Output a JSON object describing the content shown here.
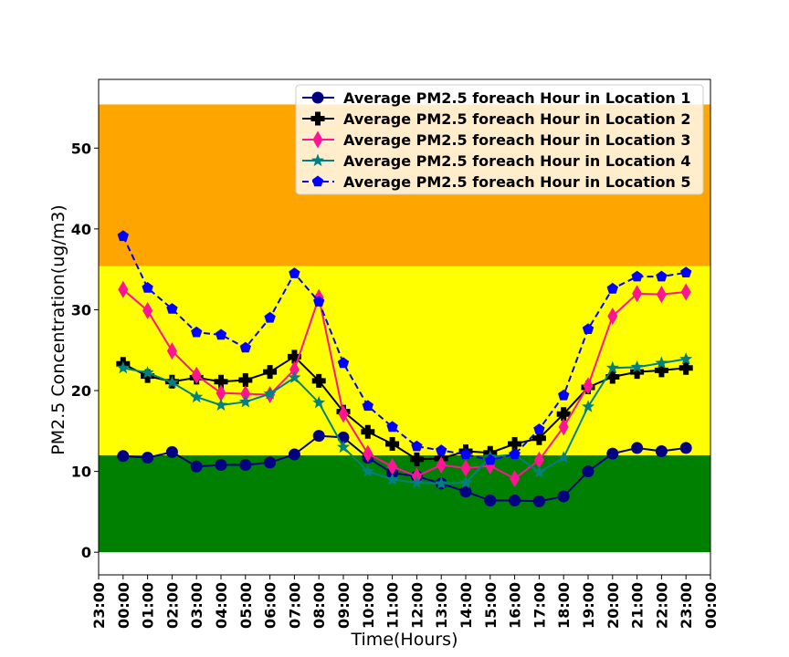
{
  "chart_data": {
    "type": "line",
    "xlabel": "Time(Hours)",
    "ylabel": "PM2.5 Concentration(ug/m3)",
    "x_tick_labels": [
      "23:00",
      "00:00",
      "01:00",
      "02:00",
      "03:00",
      "04:00",
      "05:00",
      "06:00",
      "07:00",
      "08:00",
      "09:00",
      "10:00",
      "11:00",
      "12:00",
      "13:00",
      "14:00",
      "15:00",
      "16:00",
      "17:00",
      "18:00",
      "19:00",
      "20:00",
      "21:00",
      "22:00",
      "23:00",
      "00:00"
    ],
    "x_hours": [
      0,
      1,
      2,
      3,
      4,
      5,
      6,
      7,
      8,
      9,
      10,
      11,
      12,
      13,
      14,
      15,
      16,
      17,
      18,
      19,
      20,
      21,
      22,
      23
    ],
    "xlim": [
      -1,
      24
    ],
    "ylim": [
      -2.8,
      58.5
    ],
    "y_ticks": [
      0,
      10,
      20,
      30,
      40,
      50
    ],
    "bands": [
      {
        "from": 0,
        "to": 12,
        "color": "#008000"
      },
      {
        "from": 12,
        "to": 35.4,
        "color": "#ffff00"
      },
      {
        "from": 35.4,
        "to": 55.4,
        "color": "#ffa500"
      }
    ],
    "legend_position": "top-right",
    "series": [
      {
        "name": "Average PM2.5 foreach Hour in Location 1",
        "color": "#000080",
        "marker": "circle",
        "dashed": false,
        "values": [
          11.9,
          11.7,
          12.4,
          10.6,
          10.8,
          10.8,
          11.1,
          12.1,
          14.4,
          14.2,
          11.7,
          9.8,
          9.4,
          8.5,
          7.5,
          6.4,
          6.4,
          6.3,
          6.9,
          10.0,
          12.2,
          12.9,
          12.5,
          12.9
        ]
      },
      {
        "name": "Average PM2.5 foreach Hour in Location 2",
        "color": "#000000",
        "marker": "plus",
        "dashed": false,
        "values": [
          23.3,
          21.8,
          21.1,
          21.6,
          21.1,
          21.3,
          22.3,
          24.2,
          21.2,
          17.4,
          14.9,
          13.4,
          11.5,
          11.6,
          12.5,
          12.3,
          13.4,
          14.1,
          17.1,
          20.4,
          21.7,
          22.3,
          22.5,
          22.8
        ]
      },
      {
        "name": "Average PM2.5 foreach Hour in Location 3",
        "color": "#ff1493",
        "marker": "diamond",
        "dashed": false,
        "values": [
          32.5,
          29.9,
          24.9,
          21.9,
          19.7,
          19.6,
          19.5,
          22.6,
          31.5,
          17.1,
          12.2,
          10.6,
          9.4,
          10.8,
          10.4,
          10.7,
          9.1,
          11.4,
          15.5,
          20.6,
          29.2,
          32.0,
          31.9,
          32.2
        ]
      },
      {
        "name": "Average PM2.5 foreach Hour in Location 4",
        "color": "#008080",
        "marker": "star",
        "dashed": false,
        "values": [
          22.8,
          22.2,
          21.0,
          19.2,
          18.2,
          18.6,
          19.6,
          21.6,
          18.5,
          13.0,
          10.0,
          9.0,
          8.6,
          8.5,
          8.6,
          11.8,
          12.1,
          9.9,
          11.7,
          18.0,
          22.8,
          22.9,
          23.4,
          23.9
        ]
      },
      {
        "name": "Average PM2.5 foreach Hour in Location 5",
        "color": "#0000ff",
        "marker": "pentagon",
        "dashed": true,
        "values": [
          39.1,
          32.7,
          30.1,
          27.2,
          26.9,
          25.3,
          29.0,
          34.5,
          31.0,
          23.4,
          18.1,
          15.5,
          13.1,
          12.6,
          12.1,
          11.4,
          12.1,
          15.2,
          19.4,
          27.6,
          32.6,
          34.1,
          34.1,
          34.6
        ]
      }
    ]
  }
}
